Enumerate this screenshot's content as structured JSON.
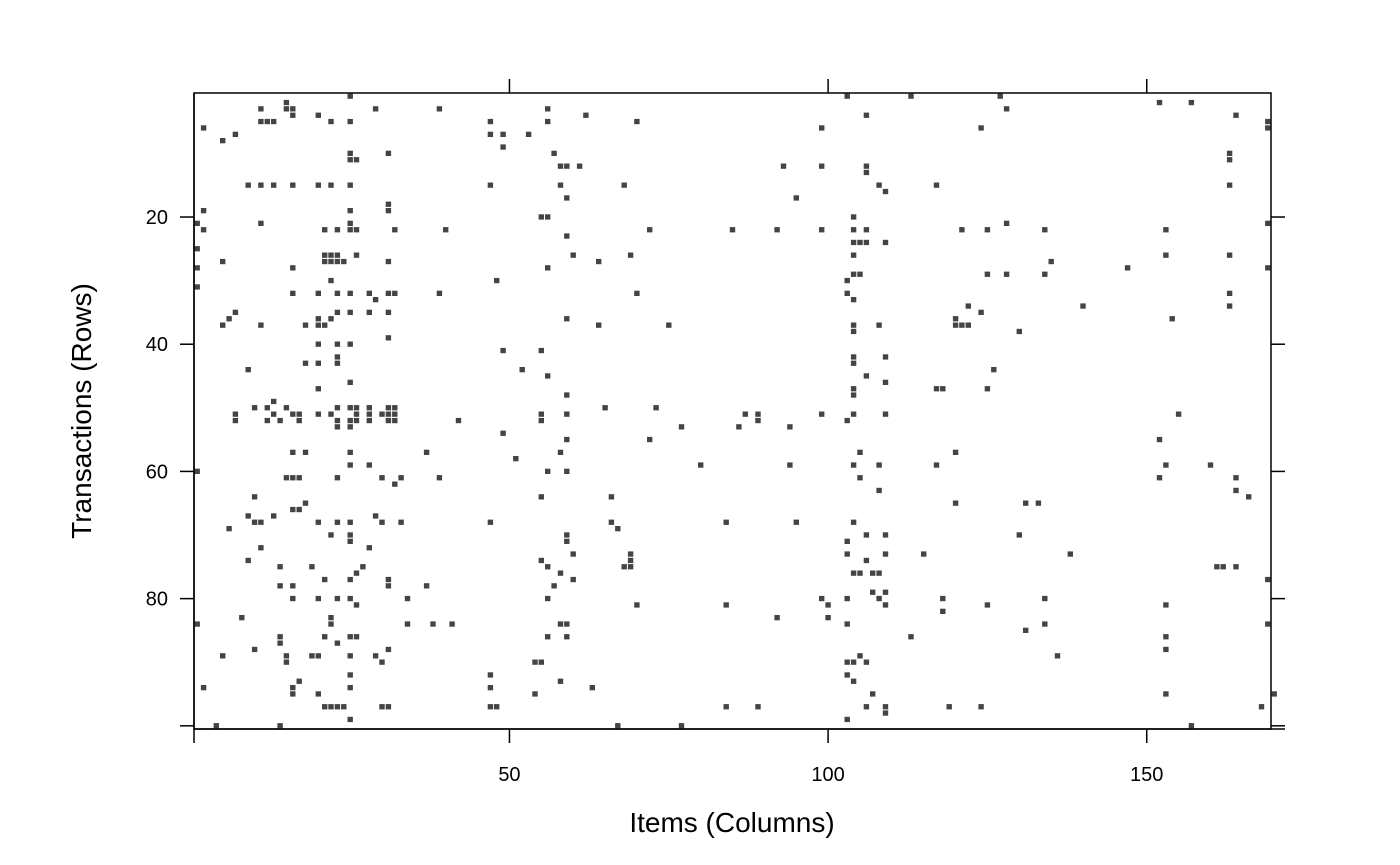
{
  "chart_data": {
    "type": "heatmap",
    "title": "",
    "xlabel": "Items (Columns)",
    "ylabel": "Transactions (Rows)",
    "xlim": [
      0.5,
      169.5
    ],
    "ylim": [
      100.5,
      0.5
    ],
    "x_ticks": [
      50,
      100,
      150
    ],
    "y_ticks": [
      20,
      40,
      60,
      80
    ],
    "cell_color": "#444444",
    "grid": false,
    "legend": "none",
    "cells": [
      [
        25,
        1
      ],
      [
        103,
        1
      ],
      [
        113,
        1
      ],
      [
        127,
        1
      ],
      [
        15,
        2
      ],
      [
        152,
        2
      ],
      [
        157,
        2
      ],
      [
        11,
        3
      ],
      [
        15,
        3
      ],
      [
        16,
        3
      ],
      [
        29,
        3
      ],
      [
        39,
        3
      ],
      [
        56,
        3
      ],
      [
        128,
        3
      ],
      [
        16,
        4
      ],
      [
        20,
        4
      ],
      [
        62,
        4
      ],
      [
        106,
        4
      ],
      [
        164,
        4
      ],
      [
        11,
        5
      ],
      [
        12,
        5
      ],
      [
        13,
        5
      ],
      [
        22,
        5
      ],
      [
        25,
        5
      ],
      [
        47,
        5
      ],
      [
        56,
        5
      ],
      [
        70,
        5
      ],
      [
        169,
        5
      ],
      [
        2,
        6
      ],
      [
        99,
        6
      ],
      [
        124,
        6
      ],
      [
        169,
        6
      ],
      [
        7,
        7
      ],
      [
        47,
        7
      ],
      [
        49,
        7
      ],
      [
        53,
        7
      ],
      [
        5,
        8
      ],
      [
        49,
        9
      ],
      [
        25,
        10
      ],
      [
        31,
        10
      ],
      [
        57,
        10
      ],
      [
        163,
        10
      ],
      [
        25,
        11
      ],
      [
        26,
        11
      ],
      [
        163,
        11
      ],
      [
        58,
        12
      ],
      [
        59,
        12
      ],
      [
        61,
        12
      ],
      [
        93,
        12
      ],
      [
        99,
        12
      ],
      [
        106,
        12
      ],
      [
        106,
        13
      ],
      [
        9,
        15
      ],
      [
        11,
        15
      ],
      [
        13,
        15
      ],
      [
        16,
        15
      ],
      [
        20,
        15
      ],
      [
        22,
        15
      ],
      [
        25,
        15
      ],
      [
        47,
        15
      ],
      [
        58,
        15
      ],
      [
        68,
        15
      ],
      [
        108,
        15
      ],
      [
        117,
        15
      ],
      [
        163,
        15
      ],
      [
        109,
        16
      ],
      [
        59,
        17
      ],
      [
        95,
        17
      ],
      [
        31,
        18
      ],
      [
        2,
        19
      ],
      [
        25,
        19
      ],
      [
        31,
        19
      ],
      [
        55,
        20
      ],
      [
        56,
        20
      ],
      [
        104,
        20
      ],
      [
        1,
        21
      ],
      [
        11,
        21
      ],
      [
        25,
        21
      ],
      [
        128,
        21
      ],
      [
        169,
        21
      ],
      [
        2,
        22
      ],
      [
        21,
        22
      ],
      [
        23,
        22
      ],
      [
        25,
        22
      ],
      [
        26,
        22
      ],
      [
        32,
        22
      ],
      [
        40,
        22
      ],
      [
        72,
        22
      ],
      [
        85,
        22
      ],
      [
        92,
        22
      ],
      [
        99,
        22
      ],
      [
        104,
        22
      ],
      [
        106,
        22
      ],
      [
        121,
        22
      ],
      [
        125,
        22
      ],
      [
        134,
        22
      ],
      [
        153,
        22
      ],
      [
        59,
        23
      ],
      [
        104,
        24
      ],
      [
        105,
        24
      ],
      [
        106,
        24
      ],
      [
        109,
        24
      ],
      [
        1,
        25
      ],
      [
        21,
        26
      ],
      [
        22,
        26
      ],
      [
        23,
        26
      ],
      [
        26,
        26
      ],
      [
        60,
        26
      ],
      [
        69,
        26
      ],
      [
        104,
        26
      ],
      [
        153,
        26
      ],
      [
        163,
        26
      ],
      [
        5,
        27
      ],
      [
        21,
        27
      ],
      [
        22,
        27
      ],
      [
        23,
        27
      ],
      [
        24,
        27
      ],
      [
        31,
        27
      ],
      [
        64,
        27
      ],
      [
        135,
        27
      ],
      [
        1,
        28
      ],
      [
        16,
        28
      ],
      [
        56,
        28
      ],
      [
        147,
        28
      ],
      [
        169,
        28
      ],
      [
        104,
        29
      ],
      [
        105,
        29
      ],
      [
        125,
        29
      ],
      [
        128,
        29
      ],
      [
        134,
        29
      ],
      [
        22,
        30
      ],
      [
        48,
        30
      ],
      [
        103,
        30
      ],
      [
        1,
        31
      ],
      [
        16,
        32
      ],
      [
        20,
        32
      ],
      [
        23,
        32
      ],
      [
        25,
        32
      ],
      [
        28,
        32
      ],
      [
        31,
        32
      ],
      [
        32,
        32
      ],
      [
        39,
        32
      ],
      [
        70,
        32
      ],
      [
        103,
        32
      ],
      [
        163,
        32
      ],
      [
        29,
        33
      ],
      [
        104,
        33
      ],
      [
        140,
        34
      ],
      [
        122,
        34
      ],
      [
        163,
        34
      ],
      [
        23,
        35
      ],
      [
        7,
        35
      ],
      [
        25,
        35
      ],
      [
        28,
        35
      ],
      [
        31,
        35
      ],
      [
        124,
        35
      ],
      [
        6,
        36
      ],
      [
        20,
        36
      ],
      [
        22,
        36
      ],
      [
        59,
        36
      ],
      [
        120,
        36
      ],
      [
        154,
        36
      ],
      [
        5,
        37
      ],
      [
        11,
        37
      ],
      [
        18,
        37
      ],
      [
        20,
        37
      ],
      [
        21,
        37
      ],
      [
        64,
        37
      ],
      [
        75,
        37
      ],
      [
        104,
        37
      ],
      [
        108,
        37
      ],
      [
        120,
        37
      ],
      [
        121,
        37
      ],
      [
        122,
        37
      ],
      [
        104,
        38
      ],
      [
        130,
        38
      ],
      [
        31,
        39
      ],
      [
        23,
        40
      ],
      [
        20,
        40
      ],
      [
        25,
        40
      ],
      [
        49,
        41
      ],
      [
        23,
        42
      ],
      [
        104,
        42
      ],
      [
        109,
        42
      ],
      [
        55,
        41
      ],
      [
        18,
        43
      ],
      [
        20,
        43
      ],
      [
        23,
        43
      ],
      [
        104,
        43
      ],
      [
        9,
        44
      ],
      [
        52,
        44
      ],
      [
        126,
        44
      ],
      [
        106,
        45
      ],
      [
        56,
        45
      ],
      [
        109,
        46
      ],
      [
        25,
        46
      ],
      [
        104,
        47
      ],
      [
        117,
        47
      ],
      [
        118,
        47
      ],
      [
        125,
        47
      ],
      [
        20,
        47
      ],
      [
        104,
        48
      ],
      [
        59,
        48
      ],
      [
        13,
        49
      ],
      [
        10,
        50
      ],
      [
        12,
        50
      ],
      [
        15,
        50
      ],
      [
        23,
        50
      ],
      [
        25,
        50
      ],
      [
        26,
        50
      ],
      [
        28,
        50
      ],
      [
        31,
        50
      ],
      [
        32,
        50
      ],
      [
        65,
        50
      ],
      [
        73,
        50
      ],
      [
        7,
        51
      ],
      [
        13,
        51
      ],
      [
        16,
        51
      ],
      [
        17,
        51
      ],
      [
        20,
        51
      ],
      [
        22,
        51
      ],
      [
        26,
        51
      ],
      [
        28,
        51
      ],
      [
        30,
        51
      ],
      [
        31,
        51
      ],
      [
        32,
        51
      ],
      [
        55,
        51
      ],
      [
        59,
        51
      ],
      [
        87,
        51
      ],
      [
        89,
        51
      ],
      [
        99,
        51
      ],
      [
        104,
        51
      ],
      [
        109,
        51
      ],
      [
        155,
        51
      ],
      [
        7,
        52
      ],
      [
        12,
        52
      ],
      [
        14,
        52
      ],
      [
        17,
        52
      ],
      [
        23,
        52
      ],
      [
        25,
        52
      ],
      [
        26,
        52
      ],
      [
        28,
        52
      ],
      [
        31,
        52
      ],
      [
        32,
        52
      ],
      [
        42,
        52
      ],
      [
        55,
        52
      ],
      [
        89,
        52
      ],
      [
        103,
        52
      ],
      [
        25,
        53
      ],
      [
        23,
        53
      ],
      [
        77,
        53
      ],
      [
        86,
        53
      ],
      [
        94,
        53
      ],
      [
        49,
        54
      ],
      [
        72,
        55
      ],
      [
        59,
        55
      ],
      [
        152,
        55
      ],
      [
        16,
        57
      ],
      [
        18,
        57
      ],
      [
        25,
        57
      ],
      [
        37,
        57
      ],
      [
        58,
        57
      ],
      [
        105,
        57
      ],
      [
        120,
        57
      ],
      [
        51,
        58
      ],
      [
        25,
        59
      ],
      [
        28,
        59
      ],
      [
        80,
        59
      ],
      [
        94,
        59
      ],
      [
        104,
        59
      ],
      [
        108,
        59
      ],
      [
        117,
        59
      ],
      [
        153,
        59
      ],
      [
        160,
        59
      ],
      [
        1,
        60
      ],
      [
        56,
        60
      ],
      [
        59,
        60
      ],
      [
        15,
        61
      ],
      [
        16,
        61
      ],
      [
        17,
        61
      ],
      [
        23,
        61
      ],
      [
        30,
        61
      ],
      [
        33,
        61
      ],
      [
        39,
        61
      ],
      [
        105,
        61
      ],
      [
        152,
        61
      ],
      [
        164,
        61
      ],
      [
        32,
        62
      ],
      [
        108,
        63
      ],
      [
        164,
        63
      ],
      [
        66,
        64
      ],
      [
        55,
        64
      ],
      [
        10,
        64
      ],
      [
        166,
        64
      ],
      [
        120,
        65
      ],
      [
        131,
        65
      ],
      [
        133,
        65
      ],
      [
        18,
        65
      ],
      [
        16,
        66
      ],
      [
        17,
        66
      ],
      [
        13,
        67
      ],
      [
        29,
        67
      ],
      [
        9,
        67
      ],
      [
        10,
        68
      ],
      [
        11,
        68
      ],
      [
        20,
        68
      ],
      [
        23,
        68
      ],
      [
        25,
        68
      ],
      [
        30,
        68
      ],
      [
        33,
        68
      ],
      [
        47,
        68
      ],
      [
        66,
        68
      ],
      [
        84,
        68
      ],
      [
        95,
        68
      ],
      [
        104,
        68
      ],
      [
        67,
        69
      ],
      [
        6,
        69
      ],
      [
        22,
        70
      ],
      [
        25,
        70
      ],
      [
        59,
        70
      ],
      [
        106,
        70
      ],
      [
        109,
        70
      ],
      [
        130,
        70
      ],
      [
        25,
        71
      ],
      [
        59,
        71
      ],
      [
        103,
        71
      ],
      [
        11,
        72
      ],
      [
        28,
        72
      ],
      [
        60,
        73
      ],
      [
        69,
        73
      ],
      [
        103,
        73
      ],
      [
        109,
        73
      ],
      [
        115,
        73
      ],
      [
        138,
        73
      ],
      [
        9,
        74
      ],
      [
        55,
        74
      ],
      [
        69,
        74
      ],
      [
        106,
        74
      ],
      [
        14,
        75
      ],
      [
        19,
        75
      ],
      [
        27,
        75
      ],
      [
        56,
        75
      ],
      [
        68,
        75
      ],
      [
        69,
        75
      ],
      [
        105,
        76
      ],
      [
        107,
        76
      ],
      [
        108,
        76
      ],
      [
        26,
        76
      ],
      [
        58,
        76
      ],
      [
        25,
        77
      ],
      [
        21,
        77
      ],
      [
        31,
        77
      ],
      [
        60,
        77
      ],
      [
        169,
        77
      ],
      [
        161,
        75
      ],
      [
        162,
        75
      ],
      [
        104,
        76
      ],
      [
        164,
        75
      ],
      [
        14,
        78
      ],
      [
        16,
        78
      ],
      [
        31,
        78
      ],
      [
        37,
        78
      ],
      [
        57,
        78
      ],
      [
        109,
        79
      ],
      [
        107,
        79
      ],
      [
        108,
        80
      ],
      [
        20,
        80
      ],
      [
        16,
        80
      ],
      [
        23,
        80
      ],
      [
        25,
        80
      ],
      [
        34,
        80
      ],
      [
        56,
        80
      ],
      [
        99,
        80
      ],
      [
        103,
        80
      ],
      [
        118,
        80
      ],
      [
        134,
        80
      ],
      [
        109,
        81
      ],
      [
        26,
        81
      ],
      [
        84,
        81
      ],
      [
        70,
        81
      ],
      [
        100,
        81
      ],
      [
        125,
        81
      ],
      [
        153,
        81
      ],
      [
        118,
        82
      ],
      [
        22,
        83
      ],
      [
        8,
        83
      ],
      [
        92,
        83
      ],
      [
        100,
        83
      ],
      [
        1,
        84
      ],
      [
        22,
        84
      ],
      [
        34,
        84
      ],
      [
        38,
        84
      ],
      [
        41,
        84
      ],
      [
        58,
        84
      ],
      [
        59,
        84
      ],
      [
        103,
        84
      ],
      [
        134,
        84
      ],
      [
        169,
        84
      ],
      [
        131,
        85
      ],
      [
        14,
        86
      ],
      [
        21,
        86
      ],
      [
        25,
        86
      ],
      [
        26,
        86
      ],
      [
        56,
        86
      ],
      [
        59,
        86
      ],
      [
        113,
        86
      ],
      [
        153,
        86
      ],
      [
        23,
        87
      ],
      [
        14,
        87
      ],
      [
        31,
        88
      ],
      [
        5,
        89
      ],
      [
        15,
        89
      ],
      [
        20,
        89
      ],
      [
        25,
        89
      ],
      [
        29,
        89
      ],
      [
        105,
        89
      ],
      [
        136,
        89
      ],
      [
        19,
        89
      ],
      [
        10,
        88
      ],
      [
        30,
        90
      ],
      [
        15,
        90
      ],
      [
        54,
        90
      ],
      [
        55,
        90
      ],
      [
        103,
        90
      ],
      [
        104,
        90
      ],
      [
        106,
        90
      ],
      [
        153,
        88
      ],
      [
        25,
        92
      ],
      [
        103,
        92
      ],
      [
        47,
        92
      ],
      [
        17,
        93
      ],
      [
        104,
        93
      ],
      [
        58,
        93
      ],
      [
        2,
        94
      ],
      [
        16,
        94
      ],
      [
        25,
        94
      ],
      [
        63,
        94
      ],
      [
        47,
        94
      ],
      [
        16,
        95
      ],
      [
        54,
        95
      ],
      [
        107,
        95
      ],
      [
        170,
        95
      ],
      [
        153,
        95
      ],
      [
        20,
        95
      ],
      [
        21,
        97
      ],
      [
        22,
        97
      ],
      [
        23,
        97
      ],
      [
        24,
        97
      ],
      [
        30,
        97
      ],
      [
        31,
        97
      ],
      [
        47,
        97
      ],
      [
        48,
        97
      ],
      [
        84,
        97
      ],
      [
        89,
        97
      ],
      [
        109,
        97
      ],
      [
        106,
        97
      ],
      [
        119,
        97
      ],
      [
        124,
        97
      ],
      [
        168,
        97
      ],
      [
        109,
        98
      ],
      [
        25,
        99
      ],
      [
        103,
        99
      ],
      [
        4,
        100
      ],
      [
        14,
        100
      ],
      [
        67,
        100
      ],
      [
        77,
        100
      ],
      [
        157,
        100
      ]
    ]
  }
}
